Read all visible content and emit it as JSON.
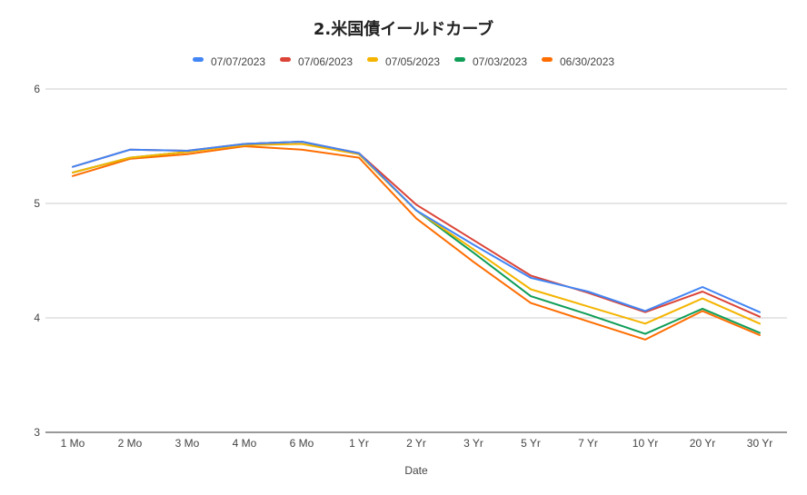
{
  "chart_data": {
    "type": "line",
    "title": "2.米国債イールドカーブ",
    "xlabel": "Date",
    "ylabel": "",
    "ylim": [
      3,
      6
    ],
    "yticks": [
      "3",
      "4",
      "5",
      "6"
    ],
    "grid": true,
    "legend_position": "top",
    "categories": [
      "1 Mo",
      "2 Mo",
      "3 Mo",
      "4 Mo",
      "6 Mo",
      "1 Yr",
      "2 Yr",
      "3 Yr",
      "5 Yr",
      "7 Yr",
      "10 Yr",
      "20 Yr",
      "30 Yr"
    ],
    "series": [
      {
        "name": "07/07/2023",
        "color": "#4285f4",
        "values": [
          5.32,
          5.47,
          5.46,
          5.52,
          5.54,
          5.44,
          4.94,
          4.64,
          4.35,
          4.23,
          4.06,
          4.27,
          4.05
        ]
      },
      {
        "name": "07/06/2023",
        "color": "#db4437",
        "values": [
          5.32,
          5.47,
          5.46,
          5.52,
          5.54,
          5.44,
          4.99,
          4.68,
          4.37,
          4.22,
          4.05,
          4.23,
          4.01
        ]
      },
      {
        "name": "07/05/2023",
        "color": "#f4b400",
        "values": [
          5.27,
          5.4,
          5.45,
          5.51,
          5.52,
          5.43,
          4.94,
          4.6,
          4.25,
          4.1,
          3.95,
          4.17,
          3.95
        ]
      },
      {
        "name": "07/03/2023",
        "color": "#0f9d58",
        "values": [
          5.27,
          5.4,
          5.45,
          5.52,
          5.54,
          5.43,
          4.94,
          4.57,
          4.19,
          4.03,
          3.86,
          4.08,
          3.87
        ]
      },
      {
        "name": "06/30/2023",
        "color": "#ff6d01",
        "values": [
          5.24,
          5.39,
          5.43,
          5.5,
          5.47,
          5.4,
          4.87,
          4.49,
          4.13,
          3.97,
          3.81,
          4.06,
          3.85
        ]
      }
    ]
  }
}
